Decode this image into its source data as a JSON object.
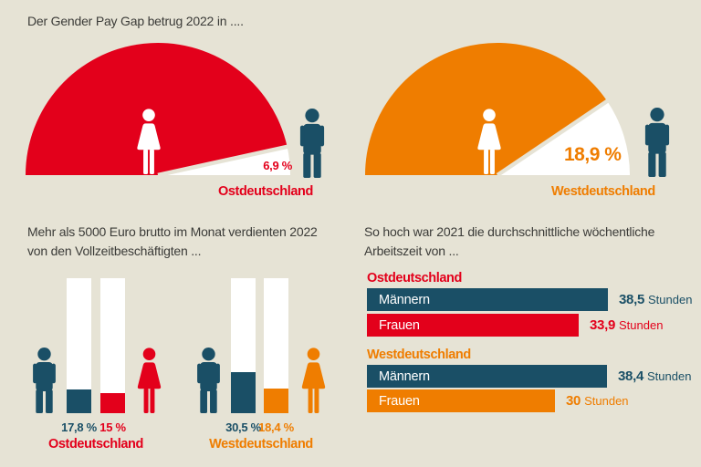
{
  "colors": {
    "red": "#e3001b",
    "orange": "#ef7d00",
    "teal": "#1a4f66",
    "white": "#ffffff",
    "background": "#e6e3d5",
    "text_dark": "#3b3b38"
  },
  "sections": {
    "pay_gap": {
      "title": "Der Gender Pay Gap betrug 2022 in ....",
      "east": {
        "region": "Ostdeutschland",
        "value_pct": 6.9,
        "value_label": "6,9 %",
        "color": "#e3001b"
      },
      "west": {
        "region": "Westdeutschland",
        "value_pct": 18.9,
        "value_label": "18,9 %",
        "color": "#ef7d00"
      }
    },
    "income": {
      "title_line1": "Mehr als 5000 Euro brutto im Monat verdienten 2022",
      "title_line2": "von den Vollzeitbeschäftigten ...",
      "east": {
        "region": "Ostdeutschland",
        "men_pct": 17.8,
        "men_label": "17,8 %",
        "women_pct": 15,
        "women_label": "15 %"
      },
      "west": {
        "region": "Westdeutschland",
        "men_pct": 30.5,
        "men_label": "30,5 %",
        "women_pct": 18.4,
        "women_label": "18,4 %"
      }
    },
    "worktime": {
      "title_line1": "So hoch war 2021 die durchschnittliche wöchentliche",
      "title_line2": "Arbeitszeit von ...",
      "east": {
        "region": "Ostdeutschland",
        "rows": [
          {
            "label": "Männern",
            "value": 38.5,
            "value_label": "38,5",
            "unit": "Stunden"
          },
          {
            "label": "Frauen",
            "value": 33.9,
            "value_label": "33,9",
            "unit": "Stunden"
          }
        ]
      },
      "west": {
        "region": "Westdeutschland",
        "rows": [
          {
            "label": "Männern",
            "value": 38.4,
            "value_label": "38,4",
            "unit": "Stunden"
          },
          {
            "label": "Frauen",
            "value": 30,
            "value_label": "30",
            "unit": "Stunden"
          }
        ]
      }
    }
  },
  "chart_data": [
    {
      "type": "pie",
      "subtype": "half-gauge",
      "title": "Der Gender Pay Gap betrug 2022 in ....",
      "categories": [
        "Ostdeutschland",
        "Westdeutschland"
      ],
      "values": [
        6.9,
        18.9
      ],
      "unit": "%",
      "note": "white wedge of each semicircle = pay gap share"
    },
    {
      "type": "bar",
      "title": "Mehr als 5000 Euro brutto im Monat verdienten 2022 von den Vollzeitbeschäftigten ...",
      "categories": [
        "Ostdeutschland",
        "Westdeutschland"
      ],
      "series": [
        {
          "name": "Männer",
          "values": [
            17.8,
            30.5
          ]
        },
        {
          "name": "Frauen",
          "values": [
            15,
            18.4
          ]
        }
      ],
      "unit": "%",
      "ylim": [
        0,
        100
      ],
      "grid": false
    },
    {
      "type": "bar",
      "orientation": "horizontal",
      "title": "So hoch war 2021 die durchschnittliche wöchentliche Arbeitszeit von ...",
      "categories": [
        "Ostdeutschland Männern",
        "Ostdeutschland Frauen",
        "Westdeutschland Männern",
        "Westdeutschland Frauen"
      ],
      "values": [
        38.5,
        33.9,
        38.4,
        30
      ],
      "unit": "Stunden",
      "xlim": [
        0,
        40
      ],
      "grid": false
    }
  ]
}
